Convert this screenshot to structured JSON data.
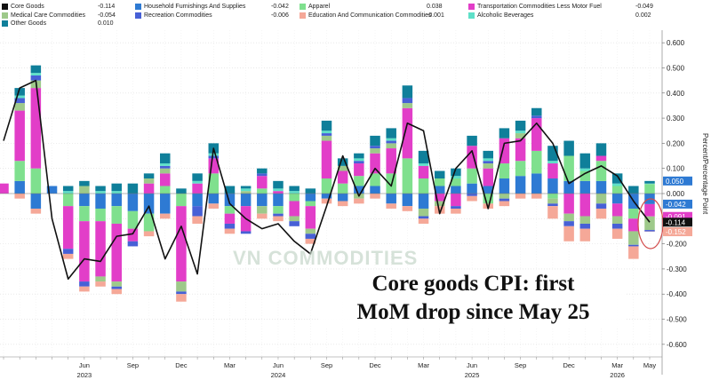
{
  "chart_data": {
    "type": "bar",
    "stacked": true,
    "ylabel": "Percent/Percentage Point",
    "ylim": [
      -0.65,
      0.65
    ],
    "yticks": [
      0.6,
      0.5,
      0.4,
      0.3,
      0.2,
      0.1,
      0.0,
      -0.1,
      -0.2,
      -0.3,
      -0.4,
      -0.5,
      -0.6
    ],
    "ytick_labels": [
      "0.600",
      "0.500",
      "0.400",
      "0.300",
      "0.200",
      "0.100",
      "0.000",
      "-0.100",
      "-0.200",
      "-0.300",
      "-0.400",
      "-0.500",
      "-0.600"
    ],
    "grid": true,
    "x_month_labels": [
      "Jun",
      "Sep",
      "Dec",
      "Mar",
      "Jun",
      "Sep",
      "Dec",
      "Mar",
      "Jun",
      "Sep",
      "Dec",
      "Mar",
      "May"
    ],
    "x_month_positions": [
      5,
      8,
      11,
      14,
      17,
      20,
      23,
      26,
      29,
      32,
      35,
      38,
      40
    ],
    "x_year_labels": [
      "2023",
      "2024",
      "2025",
      "2026"
    ],
    "x_year_positions": [
      5,
      17,
      29,
      38
    ],
    "legend": [
      {
        "name": "Core Goods",
        "value": "-0.114",
        "color": "#111111",
        "kind": "line"
      },
      {
        "name": "Household Furnishings And Supplies",
        "value": "-0.042",
        "color": "#2e7ad3",
        "kind": "bar"
      },
      {
        "name": "Apparel",
        "value": "0.038",
        "color": "#7fe08e",
        "kind": "bar"
      },
      {
        "name": "Transportation Commodities Less Motor Fuel",
        "value": "-0.049",
        "color": "#e23ec8",
        "kind": "bar"
      },
      {
        "name": "Medical Care Commodities",
        "value": "-0.054",
        "color": "#9ec98a",
        "kind": "bar"
      },
      {
        "name": "Recreation Commodities",
        "value": "-0.006",
        "color": "#4760d6",
        "kind": "bar"
      },
      {
        "name": "Education And Communication Commodities",
        "value": "-0.001",
        "color": "#f5a898",
        "kind": "bar"
      },
      {
        "name": "Alcoholic Beverages",
        "value": "0.002",
        "color": "#5ee0c8",
        "kind": "bar"
      },
      {
        "name": "Other Goods",
        "value": "0.010",
        "color": "#0f7f9a",
        "kind": "bar"
      }
    ],
    "series": [
      {
        "name": "Household Furnishings And Supplies",
        "color": "#2e7ad3",
        "values": [
          0.0,
          0.05,
          -0.06,
          0.03,
          0.0,
          -0.05,
          -0.06,
          -0.05,
          -0.07,
          -0.08,
          -0.08,
          0.0,
          -0.05,
          -0.04,
          -0.05,
          -0.05,
          -0.05,
          -0.05,
          0.0,
          -0.03,
          -0.02,
          -0.03,
          0.03,
          0.03,
          -0.04,
          -0.05,
          -0.06,
          0.03,
          0.03,
          0.04,
          0.03,
          0.06,
          0.07,
          0.08,
          0.06,
          0.05,
          0.05,
          0.05,
          -0.04,
          -0.06,
          -0.042
        ]
      },
      {
        "name": "Apparel",
        "color": "#7fe08e",
        "values": [
          0.0,
          0.08,
          0.1,
          0.0,
          -0.05,
          -0.06,
          -0.05,
          -0.07,
          -0.07,
          -0.07,
          0.03,
          -0.05,
          0.0,
          0.08,
          -0.03,
          0.0,
          0.02,
          -0.03,
          -0.03,
          -0.02,
          0.06,
          0.04,
          0.04,
          0.05,
          0.08,
          0.14,
          0.06,
          0.03,
          0.03,
          0.06,
          -0.04,
          0.06,
          0.06,
          0.09,
          -0.02,
          0.1,
          0.04,
          0.08,
          0.03,
          -0.04,
          0.038
        ]
      },
      {
        "name": "Transportation Commodities Less Motor Fuel",
        "color": "#e23ec8",
        "values": [
          0.04,
          0.2,
          0.32,
          0.0,
          -0.17,
          -0.24,
          -0.22,
          -0.23,
          -0.05,
          0.04,
          0.05,
          -0.3,
          0.04,
          0.06,
          -0.04,
          -0.1,
          0.05,
          0.01,
          -0.06,
          -0.09,
          0.15,
          0.05,
          0.05,
          0.08,
          0.1,
          0.2,
          0.05,
          -0.03,
          -0.05,
          0.09,
          0.07,
          0.1,
          0.09,
          0.13,
          0.06,
          -0.08,
          -0.09,
          0.02,
          -0.05,
          -0.05,
          -0.049
        ]
      },
      {
        "name": "Medical Care Commodities",
        "color": "#9ec98a",
        "values": [
          0.0,
          0.03,
          0.03,
          0.0,
          0.0,
          0.03,
          -0.02,
          -0.02,
          0.0,
          0.02,
          0.02,
          -0.04,
          0.0,
          0.0,
          0.0,
          0.01,
          -0.03,
          0.0,
          -0.02,
          -0.02,
          0.02,
          0.02,
          -0.02,
          0.02,
          0.02,
          0.02,
          -0.03,
          -0.02,
          0.0,
          0.0,
          0.02,
          -0.02,
          0.02,
          0.0,
          -0.02,
          -0.03,
          -0.03,
          -0.04,
          -0.03,
          -0.054,
          -0.054
        ]
      },
      {
        "name": "Recreation Commodities",
        "color": "#4760d6",
        "values": [
          0.0,
          0.02,
          0.02,
          0.0,
          -0.02,
          -0.02,
          0.0,
          -0.01,
          -0.02,
          0.0,
          0.01,
          -0.01,
          -0.04,
          0.01,
          -0.02,
          -0.01,
          0.01,
          -0.01,
          -0.02,
          -0.02,
          0.01,
          0.0,
          0.01,
          0.01,
          0.01,
          0.02,
          -0.01,
          0.0,
          -0.01,
          -0.01,
          0.01,
          -0.01,
          0.0,
          0.01,
          -0.01,
          -0.02,
          -0.02,
          -0.02,
          -0.02,
          -0.006,
          -0.006
        ]
      },
      {
        "name": "Education And Communication Commodities",
        "color": "#f5a898",
        "values": [
          0.0,
          -0.02,
          -0.02,
          0.0,
          -0.02,
          -0.02,
          -0.02,
          -0.02,
          0.0,
          -0.02,
          -0.02,
          -0.03,
          -0.03,
          -0.02,
          -0.02,
          0.0,
          -0.02,
          -0.02,
          0.0,
          -0.02,
          -0.02,
          -0.02,
          -0.02,
          -0.02,
          -0.02,
          -0.02,
          -0.02,
          -0.03,
          -0.02,
          -0.02,
          -0.02,
          -0.02,
          -0.02,
          -0.02,
          -0.05,
          -0.06,
          -0.05,
          -0.04,
          -0.04,
          -0.05,
          -0.001
        ]
      },
      {
        "name": "Alcoholic Beverages",
        "color": "#5ee0c8",
        "values": [
          0.0,
          0.01,
          0.01,
          0.0,
          0.01,
          0.0,
          0.01,
          0.01,
          0.0,
          0.0,
          0.01,
          0.0,
          0.01,
          0.01,
          0.0,
          0.01,
          0.0,
          0.01,
          0.01,
          0.0,
          0.01,
          0.0,
          0.01,
          0.0,
          0.01,
          0.0,
          0.01,
          0.0,
          0.01,
          0.0,
          0.01,
          0.0,
          0.01,
          0.0,
          0.01,
          0.0,
          0.01,
          0.0,
          0.01,
          0.0,
          0.002
        ]
      },
      {
        "name": "Other Goods",
        "color": "#0f7f9a",
        "values": [
          0.0,
          0.03,
          0.03,
          0.0,
          0.02,
          0.02,
          0.02,
          0.03,
          0.04,
          0.02,
          0.04,
          0.02,
          0.03,
          0.04,
          0.03,
          0.01,
          0.02,
          0.03,
          0.02,
          0.02,
          0.04,
          0.03,
          0.02,
          0.04,
          0.04,
          0.05,
          0.05,
          0.03,
          0.03,
          0.04,
          0.03,
          0.04,
          0.04,
          0.03,
          0.06,
          0.06,
          0.06,
          0.05,
          0.04,
          0.03,
          0.01
        ]
      }
    ],
    "core_goods_line": [
      0.21,
      0.42,
      0.45,
      -0.1,
      -0.34,
      -0.26,
      -0.27,
      -0.17,
      -0.16,
      -0.05,
      -0.26,
      -0.13,
      -0.32,
      0.18,
      -0.04,
      -0.1,
      -0.14,
      -0.12,
      -0.19,
      -0.24,
      -0.05,
      0.15,
      -0.01,
      0.1,
      0.03,
      0.28,
      0.25,
      -0.08,
      0.1,
      0.17,
      -0.06,
      0.2,
      0.21,
      0.28,
      0.2,
      0.04,
      0.08,
      0.11,
      0.07,
      -0.03,
      -0.114
    ],
    "end_labels": [
      {
        "value": "0.050",
        "color": "#2e7ad3"
      },
      {
        "value": "-0.042",
        "color": "#2e7ad3"
      },
      {
        "value": "-0.091",
        "color": "#e23ec8"
      },
      {
        "value": "-0.114",
        "color": "#111111"
      },
      {
        "value": "-0.152",
        "color": "#f5a898"
      }
    ],
    "annotation": [
      "Core goods CPI: first",
      "MoM drop since May 25"
    ],
    "watermark": "VN COMMODITIES"
  }
}
